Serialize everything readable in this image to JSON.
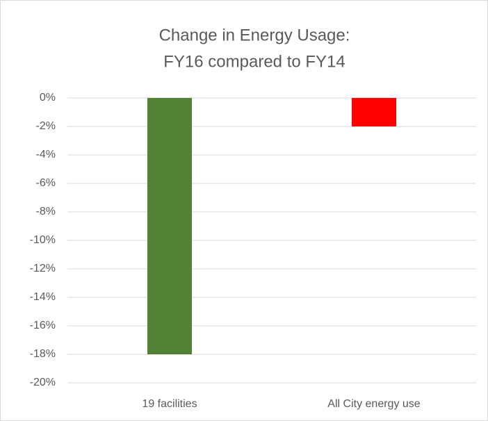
{
  "chart_data": {
    "type": "bar",
    "title": [
      "Change in Energy Usage:",
      "FY16 compared to FY14"
    ],
    "categories": [
      "19 facilities",
      "All City energy use"
    ],
    "values": [
      -18,
      -2
    ],
    "colors": [
      "#548235",
      "#ff0000"
    ],
    "ylim": [
      -20,
      0
    ],
    "yticks": [
      {
        "value": 0,
        "label": "0%"
      },
      {
        "value": -2,
        "label": "-2%"
      },
      {
        "value": -4,
        "label": "-4%"
      },
      {
        "value": -6,
        "label": "-6%"
      },
      {
        "value": -8,
        "label": "-8%"
      },
      {
        "value": -10,
        "label": "-10%"
      },
      {
        "value": -12,
        "label": "-12%"
      },
      {
        "value": -14,
        "label": "-14%"
      },
      {
        "value": -16,
        "label": "-16%"
      },
      {
        "value": -18,
        "label": "-18%"
      },
      {
        "value": -20,
        "label": "-20%"
      }
    ],
    "grid": true
  }
}
